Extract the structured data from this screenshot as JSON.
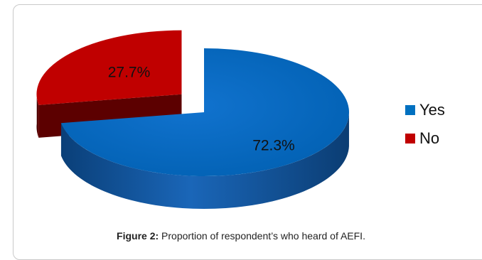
{
  "chart_data": {
    "type": "pie",
    "slices": [
      {
        "label": "Yes",
        "value": 72.3,
        "value_label": "72.3%",
        "color": "#0070c0"
      },
      {
        "label": "No",
        "value": 27.7,
        "value_label": "27.7%",
        "color": "#c00000"
      }
    ],
    "legend": {
      "position": "right",
      "items": [
        "Yes",
        "No"
      ]
    },
    "style": "3d-exploded"
  },
  "caption": {
    "label": "Figure 2:",
    "text": " Proportion of respondent’s who heard of AEFI."
  }
}
